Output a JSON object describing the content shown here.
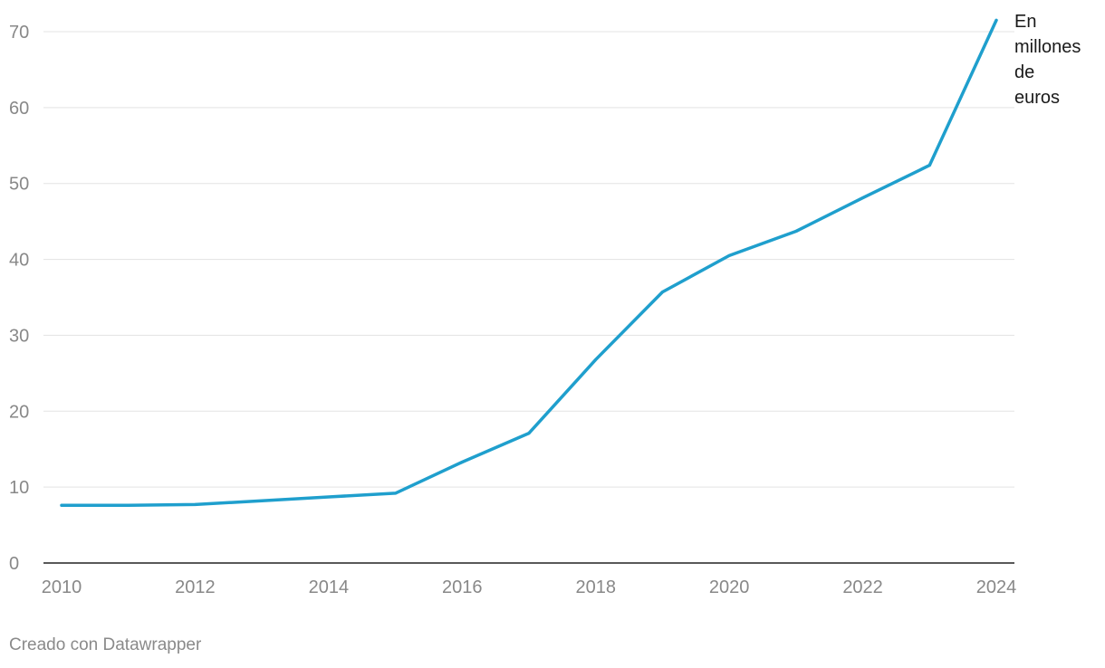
{
  "chart_data": {
    "type": "line",
    "x": [
      2010,
      2011,
      2012,
      2013,
      2014,
      2015,
      2016,
      2017,
      2018,
      2019,
      2020,
      2021,
      2022,
      2023,
      2024
    ],
    "series": [
      {
        "values": [
          7.6,
          7.6,
          7.7,
          8.2,
          8.7,
          9.2,
          13.3,
          17.1,
          26.8,
          35.7,
          40.5,
          43.7,
          48.1,
          52.4,
          71.5
        ]
      }
    ],
    "xticks": [
      "2010",
      "2012",
      "2014",
      "2016",
      "2018",
      "2020",
      "2022",
      "2024"
    ],
    "yticks": [
      "0",
      "10",
      "20",
      "30",
      "40",
      "50",
      "60",
      "70"
    ],
    "xlim": [
      2010,
      2024
    ],
    "ylim": [
      0,
      70
    ],
    "line_color": "#1f9fcd",
    "grid": true,
    "annotation": [
      "En",
      "millones",
      "de",
      "euros"
    ]
  },
  "footer": {
    "credit": "Creado con Datawrapper"
  }
}
